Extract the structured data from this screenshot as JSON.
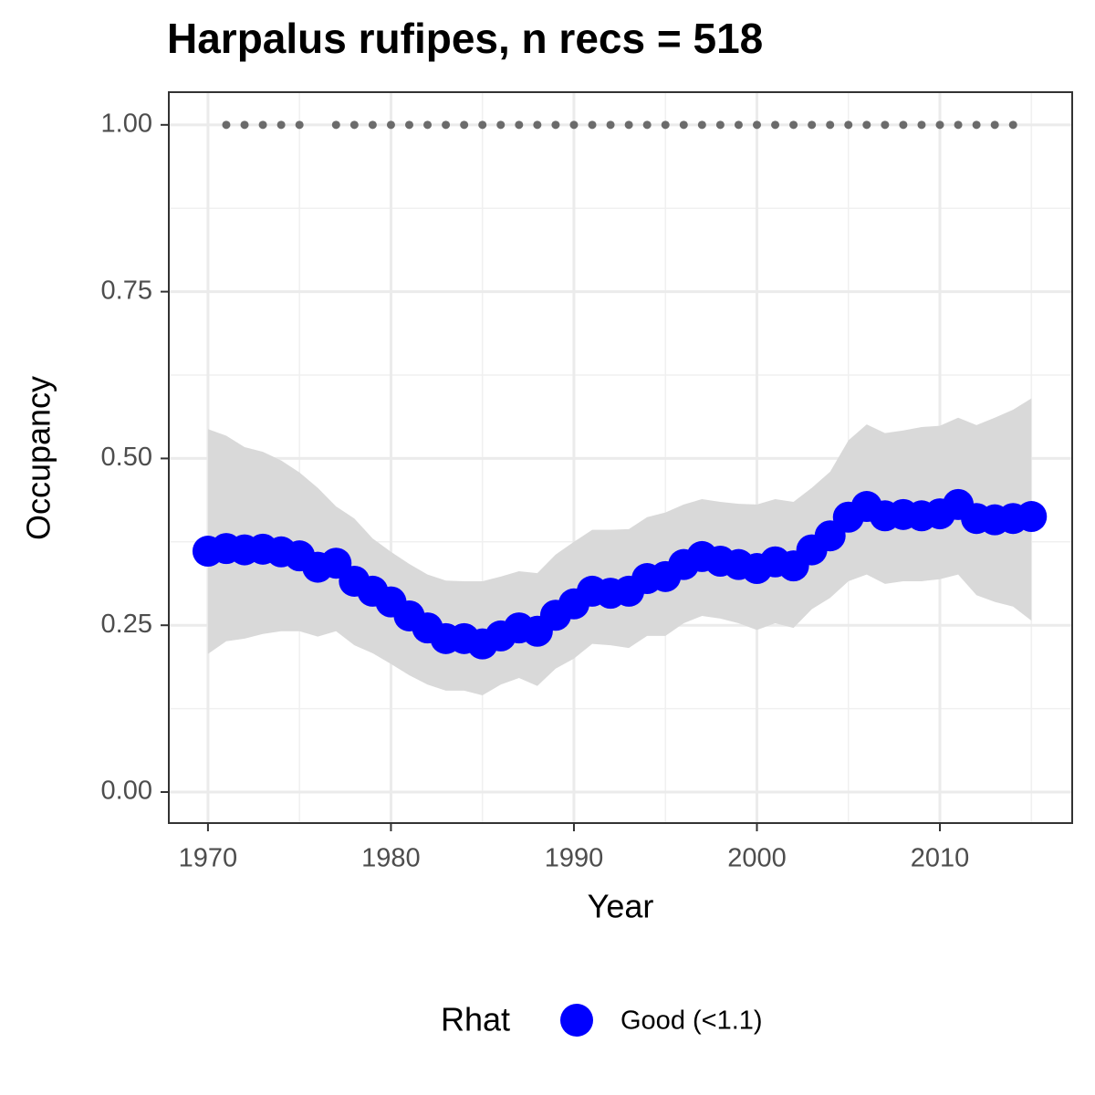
{
  "chart_data": {
    "type": "line",
    "title": "Harpalus rufipes, n recs = 518",
    "x_label": "Year",
    "y_label": "Occupancy",
    "x": [
      1970,
      1971,
      1972,
      1973,
      1974,
      1975,
      1976,
      1977,
      1978,
      1979,
      1980,
      1981,
      1982,
      1983,
      1984,
      1985,
      1986,
      1987,
      1988,
      1989,
      1990,
      1991,
      1992,
      1993,
      1994,
      1995,
      1996,
      1997,
      1998,
      1999,
      2000,
      2001,
      2002,
      2003,
      2004,
      2005,
      2006,
      2007,
      2008,
      2009,
      2010,
      2011,
      2012,
      2013,
      2014,
      2015
    ],
    "series": [
      {
        "name": "Good (<1.1)",
        "color": "#0000ff",
        "values": [
          0.361,
          0.365,
          0.363,
          0.364,
          0.36,
          0.354,
          0.337,
          0.343,
          0.316,
          0.301,
          0.285,
          0.264,
          0.246,
          0.23,
          0.23,
          0.222,
          0.234,
          0.246,
          0.241,
          0.265,
          0.282,
          0.301,
          0.298,
          0.301,
          0.32,
          0.323,
          0.341,
          0.353,
          0.346,
          0.341,
          0.335,
          0.345,
          0.339,
          0.363,
          0.384,
          0.412,
          0.428,
          0.414,
          0.416,
          0.414,
          0.417,
          0.431,
          0.41,
          0.408,
          0.41,
          0.413
        ]
      }
    ],
    "ribbon": {
      "color": "#d9d9d9",
      "upper": [
        0.544,
        0.534,
        0.517,
        0.51,
        0.497,
        0.479,
        0.456,
        0.428,
        0.41,
        0.38,
        0.36,
        0.342,
        0.326,
        0.317,
        0.316,
        0.316,
        0.323,
        0.331,
        0.328,
        0.356,
        0.375,
        0.393,
        0.393,
        0.394,
        0.412,
        0.419,
        0.431,
        0.439,
        0.435,
        0.432,
        0.431,
        0.439,
        0.435,
        0.456,
        0.48,
        0.527,
        0.551,
        0.538,
        0.542,
        0.547,
        0.549,
        0.561,
        0.55,
        0.561,
        0.573,
        0.59
      ],
      "lower": [
        0.207,
        0.226,
        0.23,
        0.237,
        0.241,
        0.241,
        0.233,
        0.241,
        0.22,
        0.208,
        0.192,
        0.175,
        0.161,
        0.152,
        0.152,
        0.145,
        0.161,
        0.171,
        0.159,
        0.185,
        0.2,
        0.222,
        0.22,
        0.216,
        0.234,
        0.234,
        0.253,
        0.264,
        0.26,
        0.253,
        0.243,
        0.253,
        0.246,
        0.274,
        0.291,
        0.316,
        0.326,
        0.312,
        0.316,
        0.316,
        0.319,
        0.326,
        0.295,
        0.285,
        0.278,
        0.257
      ]
    },
    "records": {
      "color": "#6b6b6b",
      "x": [
        1971,
        1972,
        1973,
        1974,
        1975,
        1977,
        1978,
        1979,
        1980,
        1981,
        1982,
        1983,
        1984,
        1985,
        1986,
        1987,
        1988,
        1989,
        1990,
        1991,
        1992,
        1993,
        1994,
        1995,
        1996,
        1997,
        1998,
        1999,
        2000,
        2001,
        2002,
        2003,
        2004,
        2005,
        2006,
        2007,
        2008,
        2009,
        2010,
        2011,
        2012,
        2013,
        2014
      ],
      "values": [
        1,
        1,
        1,
        1,
        1,
        1,
        1,
        1,
        1,
        1,
        1,
        1,
        1,
        1,
        1,
        1,
        1,
        1,
        1,
        1,
        1,
        1,
        1,
        1,
        1,
        1,
        1,
        1,
        1,
        1,
        1,
        1,
        1,
        1,
        1,
        1,
        1,
        1,
        1,
        1,
        1,
        1,
        1
      ]
    },
    "legend_title": "Rhat",
    "legend": "bottom",
    "xlim": [
      1967.86,
      2017.23
    ],
    "ylim": [
      -0.0465,
      1.049
    ],
    "xticks": [
      1970,
      1980,
      1990,
      2000,
      2010
    ],
    "x_minor_ticks": [
      1975,
      1985,
      1995,
      2005,
      2015
    ],
    "yticks": [
      {
        "value": 0,
        "label": "0.00"
      },
      {
        "value": 0.25,
        "label": "0.25"
      },
      {
        "value": 0.5,
        "label": "0.50"
      },
      {
        "value": 0.75,
        "label": "0.75"
      },
      {
        "value": 1,
        "label": "1.00"
      }
    ],
    "y_minor_ticks": [
      0.125,
      0.375,
      0.625,
      0.875
    ],
    "grid": true
  }
}
